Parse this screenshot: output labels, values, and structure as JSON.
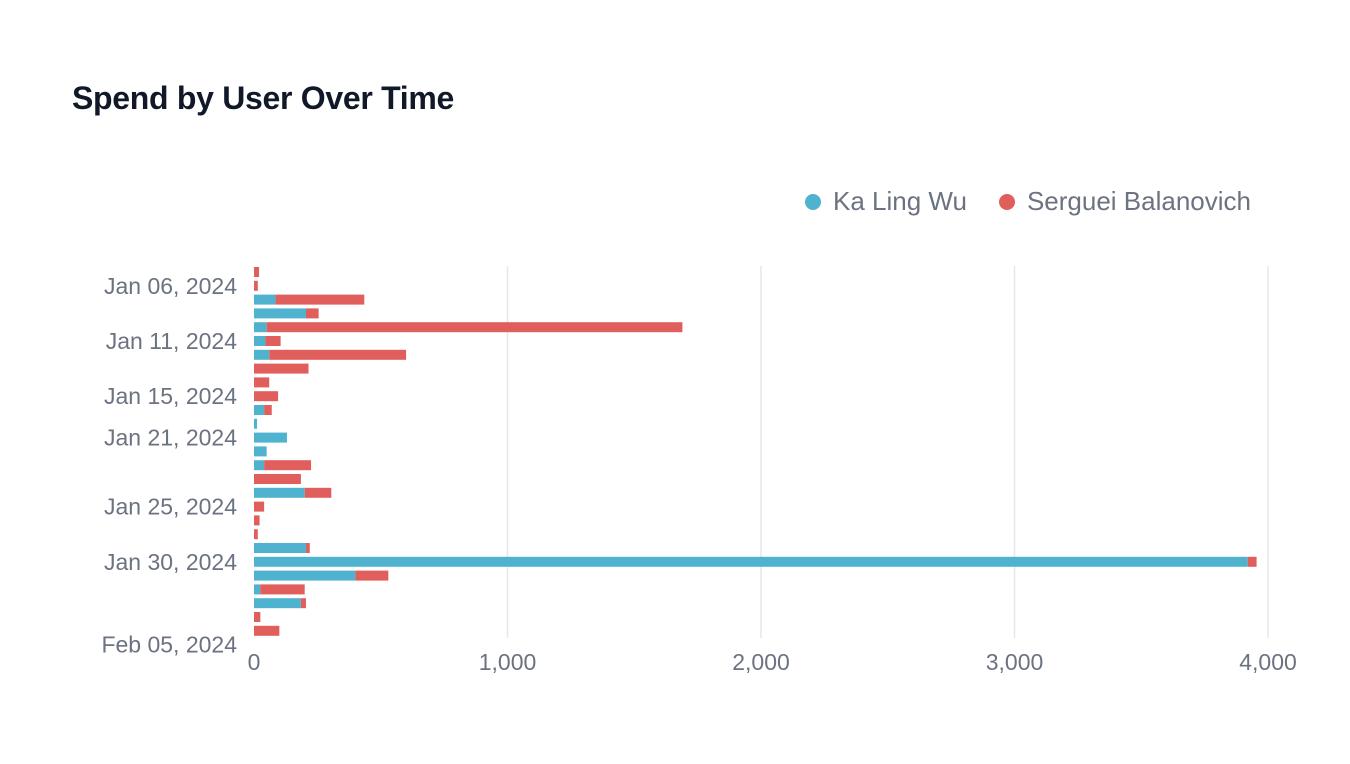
{
  "title": "Spend by User Over Time",
  "colors": {
    "ka_ling_wu": "#4fb3cf",
    "serguei_balanovich": "#e05f5c",
    "grid": "#e5e7eb",
    "text": "#6b7280"
  },
  "legend": [
    {
      "label": "Ka Ling Wu",
      "color": "#4fb3cf"
    },
    {
      "label": "Serguei Balanovich",
      "color": "#e05f5c"
    }
  ],
  "chart_data": {
    "type": "bar",
    "orientation": "horizontal",
    "stacked": true,
    "title": "Spend by User Over Time",
    "xlim": [
      0,
      4000
    ],
    "x_ticks": [
      0,
      1000,
      2000,
      3000,
      4000
    ],
    "x_tick_labels": [
      "0",
      "1,000",
      "2,000",
      "3,000",
      "4,000"
    ],
    "y_tick_labels": [
      "Jan 06, 2024",
      "Jan 11, 2024",
      "Jan 15, 2024",
      "Jan 21, 2024",
      "Jan 25, 2024",
      "Jan 30, 2024",
      "Feb 05, 2024"
    ],
    "grid": "vertical",
    "legend_position": "top-right",
    "series": [
      {
        "name": "Ka Ling Wu",
        "color": "#4fb3cf",
        "values": [
          0,
          0,
          85,
          205,
          50,
          45,
          60,
          0,
          0,
          0,
          40,
          12,
          130,
          50,
          40,
          0,
          200,
          0,
          0,
          0,
          205,
          3920,
          400,
          25,
          185,
          0,
          0
        ]
      },
      {
        "name": "Serguei Balanovich",
        "color": "#e05f5c",
        "values": [
          20,
          15,
          350,
          50,
          1640,
          60,
          540,
          215,
          60,
          95,
          30,
          0,
          0,
          0,
          185,
          185,
          105,
          40,
          22,
          15,
          15,
          35,
          130,
          175,
          20,
          25,
          100
        ]
      }
    ]
  }
}
